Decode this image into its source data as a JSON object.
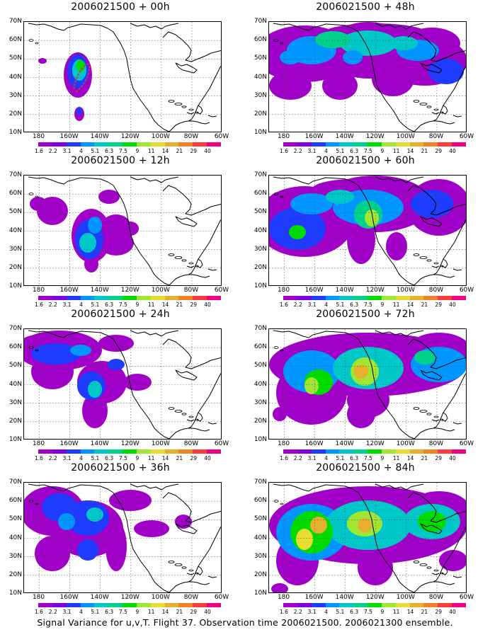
{
  "figure": {
    "footer": "Signal Variance for u,v,T. Flight 37. Observation time 2006021500. 2006021300 ensemble.",
    "y_tick_labels": [
      "70N",
      "60N",
      "50N",
      "40N",
      "30N",
      "20N",
      "10N"
    ],
    "x_tick_labels": [
      "180",
      "160W",
      "140W",
      "120W",
      "100W",
      "80W",
      "60W"
    ],
    "colorbar": {
      "levels": [
        "1.6",
        "2.2",
        "3.1",
        "4",
        "5.1",
        "6.3",
        "7.5",
        "9",
        "11",
        "14",
        "21",
        "29",
        "40"
      ],
      "colors": [
        "#a000c8",
        "#8200dc",
        "#1e3cff",
        "#0096ff",
        "#00c8c8",
        "#00d28c",
        "#00dc00",
        "#a0e632",
        "#e6dc32",
        "#e6af2d",
        "#f08228",
        "#fa3c3c",
        "#f00082"
      ]
    }
  },
  "panels": [
    {
      "title": "2006021500 + 00h",
      "lead_hours": 0
    },
    {
      "title": "2006021500 + 48h",
      "lead_hours": 48
    },
    {
      "title": "2006021500 + 12h",
      "lead_hours": 12
    },
    {
      "title": "2006021500 + 60h",
      "lead_hours": 60
    },
    {
      "title": "2006021500 + 24h",
      "lead_hours": 24
    },
    {
      "title": "2006021500 + 72h",
      "lead_hours": 72
    },
    {
      "title": "2006021500 + 36h",
      "lead_hours": 36
    },
    {
      "title": "2006021500 + 84h",
      "lead_hours": 84
    }
  ]
}
